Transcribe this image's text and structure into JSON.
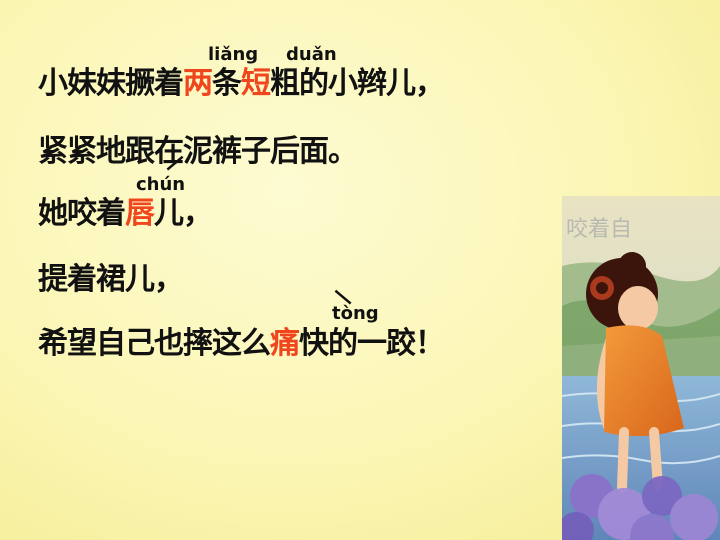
{
  "poem": {
    "line1": {
      "part1": "小妹妹撅着",
      "word1": "两",
      "part2": "条",
      "word2": "短",
      "part3": "粗的小辫儿，",
      "pinyin1": "liǎng",
      "pinyin2": "duǎn"
    },
    "line2": {
      "text": "紧紧地跟在泥裤子后面。"
    },
    "line3": {
      "part1": "她咬着",
      "word": "唇",
      "part2": "儿，",
      "pinyin": "chún"
    },
    "line4": {
      "text": "提着裙儿，"
    },
    "line5": {
      "part1": "希望自己也摔这么",
      "word": "痛",
      "part2": "快的一跤！",
      "pinyin": "tòng"
    }
  },
  "colors": {
    "highlight": "#f0461e",
    "text": "#111111"
  },
  "illustration": {
    "name": "girl-in-orange-dress-at-water",
    "background_text": "咬着自"
  }
}
